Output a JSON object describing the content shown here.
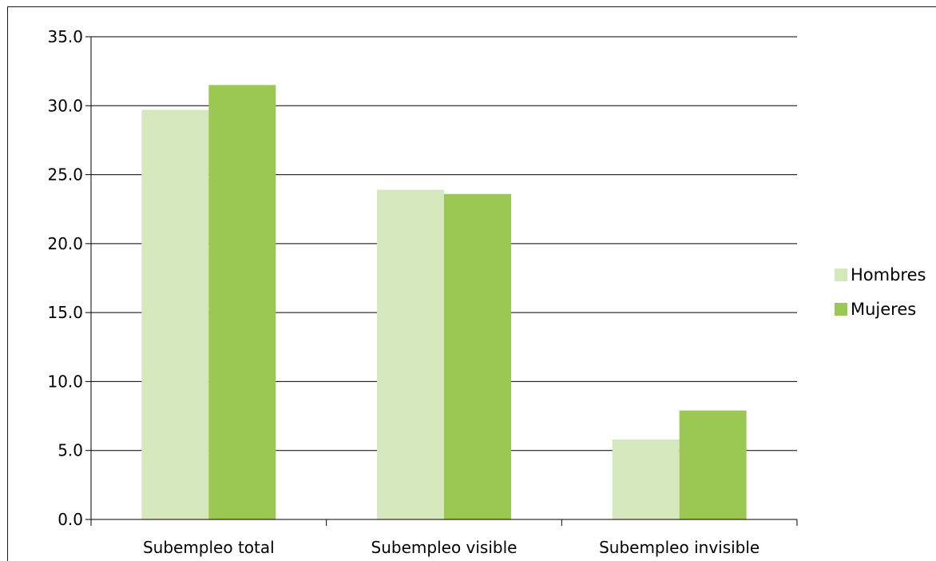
{
  "chart_data": {
    "type": "bar",
    "title": "",
    "xlabel": "",
    "ylabel": "",
    "categories": [
      "Subempleo total",
      "Subempleo visible",
      "Subempleo invisible"
    ],
    "series": [
      {
        "name": "Hombres",
        "values": [
          29.7,
          23.9,
          5.8
        ],
        "color": "#d5e8bd"
      },
      {
        "name": "Mujeres",
        "values": [
          31.5,
          23.6,
          7.9
        ],
        "color": "#9bc753"
      }
    ],
    "ylim": [
      0,
      35
    ],
    "yticks": [
      0,
      5,
      10,
      15,
      20,
      25,
      30,
      35
    ],
    "ytick_labels": [
      "0.0",
      "5.0",
      "10.0",
      "15.0",
      "20.0",
      "25.0",
      "30.0",
      "35.0"
    ],
    "grid": true,
    "legend_position": "right"
  }
}
